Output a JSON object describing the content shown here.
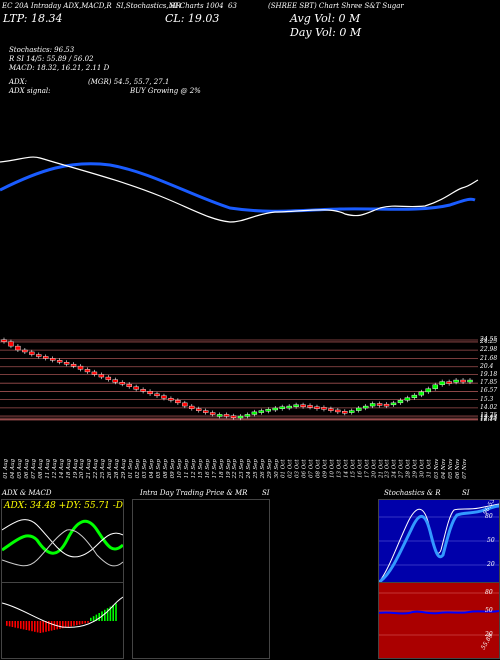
{
  "header": {
    "line1": [
      "EC 20A Intraday ADX,MACD,R",
      "SI,Stochastics,MR",
      "SI Charts 1004",
      "63",
      "(SHREE SBT) Chart Shree S&T Sugar"
    ],
    "ltp_label": "LTP: 18.34",
    "cl_label": "CL: 19.03",
    "avg_vol": "Avg Vol: 0   M",
    "day_vol": "Day Vol: 0   M",
    "stoch": "Stochastics: 96.53",
    "rsi": "R          SI 14/5: 55.89 / 56.02",
    "macd": "MACD: 18.32,  16.21, 2.11 D",
    "adx": "ADX:",
    "adx_vals": "(MGR) 54.5,  55.7,  27.1",
    "adx_signal": "ADX  signal:",
    "adx_signal_val": "BUY Growing @ 2%"
  },
  "price_axis": [
    "24.55",
    "24.25",
    "22.98",
    "21.68",
    "20.4",
    "19.18",
    "17.85",
    "16.57",
    "15.3",
    "14.02",
    "12.75",
    "12.43",
    "12.25",
    "12.14"
  ],
  "date_labels": [
    "30 Jul",
    "01 Aug",
    "04 Aug",
    "05 Aug",
    "06 Aug",
    "07 Aug",
    "08 Aug",
    "11 Aug",
    "12 Aug",
    "14 Aug",
    "18 Aug",
    "19 Aug",
    "20 Aug",
    "21 Aug",
    "22 Aug",
    "25 Aug",
    "26 Aug",
    "28 Aug",
    "29 Aug",
    "01 Sep",
    "02 Sep",
    "03 Sep",
    "04 Sep",
    "05 Sep",
    "08 Sep",
    "09 Sep",
    "10 Sep",
    "11 Sep",
    "12 Sep",
    "15 Sep",
    "16 Sep",
    "17 Sep",
    "18 Sep",
    "19 Sep",
    "22 Sep",
    "23 Sep",
    "24 Sep",
    "25 Sep",
    "26 Sep",
    "29 Sep",
    "30 Sep",
    "01 Oct",
    "02 Oct",
    "03 Oct",
    "06 Oct",
    "07 Oct",
    "08 Oct",
    "09 Oct",
    "10 Oct",
    "13 Oct",
    "14 Oct",
    "15 Oct",
    "16 Oct",
    "17 Oct",
    "20 Oct",
    "21 Oct",
    "23 Oct",
    "24 Oct",
    "27 Oct",
    "28 Oct",
    "29 Oct",
    "30 Oct",
    "31 Oct",
    "03 Nov",
    "04 Nov",
    "05 Nov",
    "06 Nov",
    "07 Nov"
  ],
  "panels": {
    "adx_title": "ADX  & MACD",
    "adx_values": "ADX: 34.48  +DY: 55.71 -DY: 27.14",
    "intra_title": "Intra  Day Trading Price  & MR",
    "intra_si": "SI",
    "stoch_title": "Stochastics & R",
    "stoch_si": "SI",
    "stoch_ticks": [
      "80",
      "50",
      "20"
    ],
    "stoch_top_val": "96.53",
    "rsi_ticks": [
      "80",
      "50",
      "20"
    ],
    "rsi_val": "55.89"
  },
  "chart_data": [
    {
      "type": "candlestick",
      "title": "",
      "categories_ref": "date_labels",
      "ylim": [
        12.14,
        24.55
      ],
      "values": [
        24.3,
        23.6,
        23.0,
        22.7,
        22.3,
        22.0,
        21.7,
        21.4,
        21.1,
        20.8,
        20.5,
        20.0,
        19.6,
        19.2,
        18.8,
        18.4,
        18.0,
        17.7,
        17.3,
        16.9,
        16.6,
        16.2,
        15.9,
        15.5,
        15.2,
        14.8,
        14.3,
        13.9,
        13.6,
        13.3,
        13.0,
        13.0,
        12.8,
        12.7,
        12.75,
        13.0,
        13.4,
        13.6,
        13.8,
        14.0,
        14.2,
        14.3,
        14.5,
        14.4,
        14.2,
        14.1,
        13.9,
        13.7,
        13.5,
        13.3,
        13.6,
        14.0,
        14.3,
        14.7,
        14.6,
        14.5,
        14.8,
        15.2,
        15.6,
        16.0,
        16.5,
        17.0,
        17.6,
        18.1,
        18.0,
        18.34,
        18.3,
        18.34
      ]
    }
  ],
  "colors": {
    "ma_fast": "#ffffff",
    "ma_slow": "#1a5cff",
    "up": "#00ff00",
    "down": "#ff0000",
    "grid": "#a05050"
  }
}
